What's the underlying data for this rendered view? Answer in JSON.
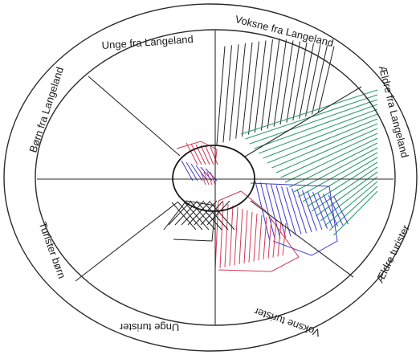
{
  "diagram": {
    "segments": [
      {
        "label": "Unge fra Langeland"
      },
      {
        "label": "Voksne fra Langeland"
      },
      {
        "label": "Ældre fra Langeland"
      },
      {
        "label": "Ældre turister"
      },
      {
        "label": "Voksne turister"
      },
      {
        "label": "Unge turister"
      },
      {
        "label": "Turister børn"
      },
      {
        "label": "Børn fra Langeland"
      }
    ],
    "colors": {
      "outline": "#2b2b2b",
      "red": "#d23a55",
      "blue": "#3a3ad0",
      "green": "#2e9c6e",
      "black": "#222222"
    }
  }
}
